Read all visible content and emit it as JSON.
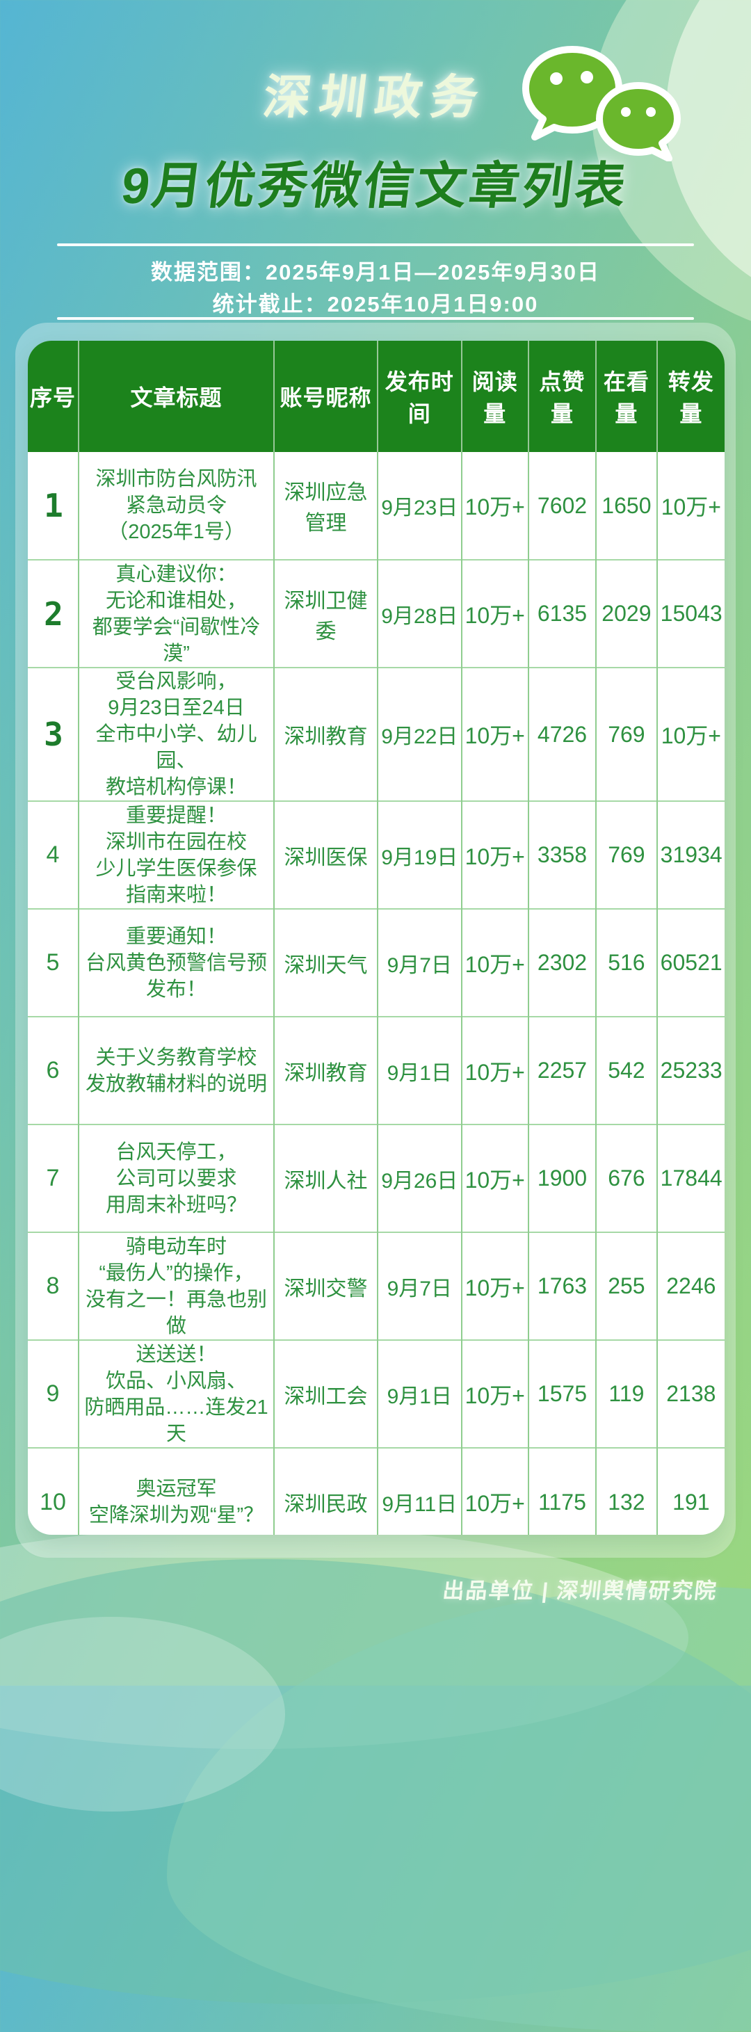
{
  "header": {
    "brand": "深圳政务",
    "title": "9月优秀微信文章列表",
    "date_range": "数据范围：2025年9月1日—2025年9月30日",
    "stats_deadline": "统计截止：2025年10月1日9:00"
  },
  "table": {
    "columns": [
      "序号",
      "文章标题",
      "账号昵称",
      "发布时间",
      "阅读量",
      "点赞量",
      "在看量",
      "转发量"
    ],
    "rows": [
      {
        "no": "1",
        "title": "深圳市防台风防汛\n紧急动员令\n（2025年1号）",
        "account": "深圳应急管理",
        "date": "9月23日",
        "reads": "10万+",
        "likes": "7602",
        "looks": "1650",
        "forwards": "10万+",
        "big": true
      },
      {
        "no": "2",
        "title": "真心建议你：\n无论和谁相处，\n都要学会“间歇性冷漠”",
        "account": "深圳卫健委",
        "date": "9月28日",
        "reads": "10万+",
        "likes": "6135",
        "looks": "2029",
        "forwards": "15043",
        "big": true
      },
      {
        "no": "3",
        "title": "受台风影响，\n9月23日至24日\n全市中小学、幼儿园、\n教培机构停课！",
        "account": "深圳教育",
        "date": "9月22日",
        "reads": "10万+",
        "likes": "4726",
        "looks": "769",
        "forwards": "10万+",
        "big": true
      },
      {
        "no": "4",
        "title": "重要提醒！\n深圳市在园在校\n少儿学生医保参保\n指南来啦！",
        "account": "深圳医保",
        "date": "9月19日",
        "reads": "10万+",
        "likes": "3358",
        "looks": "769",
        "forwards": "31934",
        "big": false
      },
      {
        "no": "5",
        "title": "重要通知！\n台风黄色预警信号预发布！",
        "account": "深圳天气",
        "date": "9月7日",
        "reads": "10万+",
        "likes": "2302",
        "looks": "516",
        "forwards": "60521",
        "big": false
      },
      {
        "no": "6",
        "title": "关于义务教育学校\n发放教辅材料的说明",
        "account": "深圳教育",
        "date": "9月1日",
        "reads": "10万+",
        "likes": "2257",
        "looks": "542",
        "forwards": "25233",
        "big": false
      },
      {
        "no": "7",
        "title": "台风天停工，\n公司可以要求\n用周末补班吗？",
        "account": "深圳人社",
        "date": "9月26日",
        "reads": "10万+",
        "likes": "1900",
        "looks": "676",
        "forwards": "17844",
        "big": false
      },
      {
        "no": "8",
        "title": "骑电动车时\n“最伤人”的操作，\n没有之一！再急也别做",
        "account": "深圳交警",
        "date": "9月7日",
        "reads": "10万+",
        "likes": "1763",
        "looks": "255",
        "forwards": "2246",
        "big": false
      },
      {
        "no": "9",
        "title": "送送送！\n饮品、小风扇、\n防晒用品……连发21天",
        "account": "深圳工会",
        "date": "9月1日",
        "reads": "10万+",
        "likes": "1575",
        "looks": "119",
        "forwards": "2138",
        "big": false
      },
      {
        "no": "10",
        "title": "奥运冠军\n空降深圳为观“星”？",
        "account": "深圳民政",
        "date": "9月11日",
        "reads": "10万+",
        "likes": "1175",
        "looks": "132",
        "forwards": "191",
        "big": false
      }
    ]
  },
  "footer": {
    "credit": "出品单位 | 深圳舆情研究院"
  },
  "colors": {
    "header_green": "#1c831c",
    "body_text_green": "#2e9140",
    "grid_green": "#8fcd8f",
    "title_green": "#1e7e1e",
    "wechat_green": "#6ab72c",
    "bg_teal": "#55b5d3",
    "bg_green": "#9ad77f"
  }
}
